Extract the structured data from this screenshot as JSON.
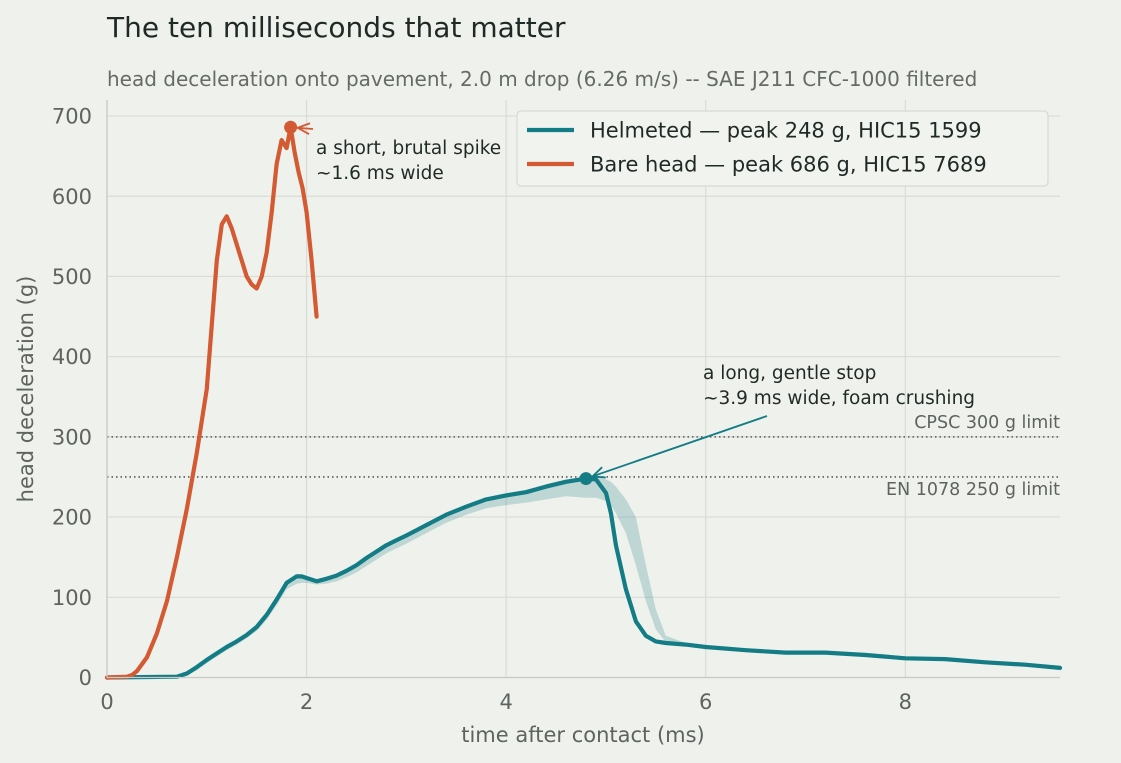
{
  "chart_data": {
    "type": "line",
    "title": "The ten milliseconds that matter",
    "subtitle": "head deceleration onto pavement, 2.0 m drop (6.26 m/s) -- SAE J211 CFC-1000 filtered",
    "xlabel": "time after contact (ms)",
    "ylabel": "head deceleration (g)",
    "xlim": [
      0,
      9.55
    ],
    "ylim": [
      0,
      720
    ],
    "xticks": [
      0,
      2,
      4,
      6,
      8
    ],
    "yticks": [
      0,
      100,
      200,
      300,
      400,
      500,
      600,
      700
    ],
    "grid": true,
    "legend_position": "top-right",
    "series": [
      {
        "name": "Helmeted  —  peak 248 g, HIC15 1599",
        "color": "#137c85",
        "x": [
          0,
          0.7,
          0.8,
          0.9,
          1.0,
          1.1,
          1.2,
          1.3,
          1.4,
          1.5,
          1.6,
          1.7,
          1.8,
          1.9,
          1.95,
          2.0,
          2.1,
          2.2,
          2.3,
          2.4,
          2.5,
          2.6,
          2.7,
          2.8,
          2.9,
          3.0,
          3.2,
          3.4,
          3.6,
          3.8,
          4.0,
          4.2,
          4.4,
          4.6,
          4.8,
          4.9,
          5.0,
          5.05,
          5.1,
          5.2,
          5.3,
          5.4,
          5.5,
          5.6,
          5.8,
          6.0,
          6.4,
          6.8,
          7.2,
          7.6,
          8.0,
          8.4,
          8.8,
          9.2,
          9.55
        ],
        "y": [
          0,
          1,
          5,
          13,
          22,
          30,
          38,
          45,
          53,
          63,
          78,
          97,
          118,
          126,
          126,
          124,
          120,
          123,
          127,
          133,
          140,
          149,
          157,
          165,
          171,
          177,
          190,
          203,
          213,
          222,
          227,
          231,
          238,
          244,
          248,
          247,
          230,
          205,
          165,
          110,
          70,
          52,
          45,
          43,
          41,
          38,
          34,
          31,
          31,
          28,
          24,
          23,
          19,
          16,
          12
        ],
        "band_lower": [
          0,
          0,
          2,
          9,
          18,
          26,
          34,
          41,
          49,
          58,
          72,
          90,
          110,
          117,
          118,
          118,
          116,
          117,
          120,
          125,
          131,
          139,
          147,
          155,
          161,
          167,
          180,
          193,
          203,
          211,
          215,
          218,
          222,
          226,
          224,
          224,
          220,
          215,
          205,
          180,
          140,
          95,
          60,
          44,
          41,
          38,
          34,
          31,
          31,
          27,
          23,
          22,
          18,
          15,
          11
        ],
        "band_upper": [
          0,
          1,
          5,
          13,
          22,
          30,
          38,
          45,
          53,
          63,
          78,
          97,
          118,
          126,
          126,
          124,
          122,
          125,
          129,
          135,
          142,
          151,
          159,
          167,
          173,
          179,
          192,
          205,
          215,
          224,
          230,
          234,
          241,
          247,
          250,
          250,
          247,
          244,
          238,
          222,
          200,
          140,
          85,
          52,
          43,
          39,
          36,
          33,
          33,
          31,
          26,
          25,
          21,
          18,
          14
        ],
        "peak": {
          "x": 4.8,
          "y": 248
        }
      },
      {
        "name": "Bare head  —  peak 686 g, HIC15 7689",
        "color": "#d35a32",
        "x": [
          0,
          0.2,
          0.25,
          0.3,
          0.4,
          0.5,
          0.6,
          0.7,
          0.8,
          0.9,
          1.0,
          1.05,
          1.1,
          1.15,
          1.2,
          1.25,
          1.3,
          1.35,
          1.4,
          1.45,
          1.5,
          1.55,
          1.6,
          1.65,
          1.7,
          1.75,
          1.8,
          1.84,
          1.88,
          1.92,
          1.96,
          2.0,
          2.05,
          2.1
        ],
        "y": [
          0,
          1,
          3,
          8,
          25,
          55,
          95,
          150,
          210,
          280,
          360,
          440,
          520,
          565,
          575,
          560,
          540,
          520,
          500,
          490,
          485,
          500,
          530,
          580,
          640,
          670,
          660,
          686,
          655,
          630,
          610,
          580,
          520,
          450
        ],
        "peak": {
          "x": 1.84,
          "y": 686
        }
      }
    ],
    "reference_lines": [
      {
        "y": 300,
        "label": "CPSC 300 g limit"
      },
      {
        "y": 250,
        "label": "EN 1078 250 g limit"
      }
    ],
    "annotations": [
      {
        "text": [
          "a short, brutal spike",
          "~1.6 ms wide"
        ],
        "target": {
          "x": 1.84,
          "y": 686
        }
      },
      {
        "text": [
          "a long, gentle stop",
          "~3.9 ms wide, foam crushing"
        ],
        "target": {
          "x": 4.8,
          "y": 248
        }
      }
    ]
  }
}
